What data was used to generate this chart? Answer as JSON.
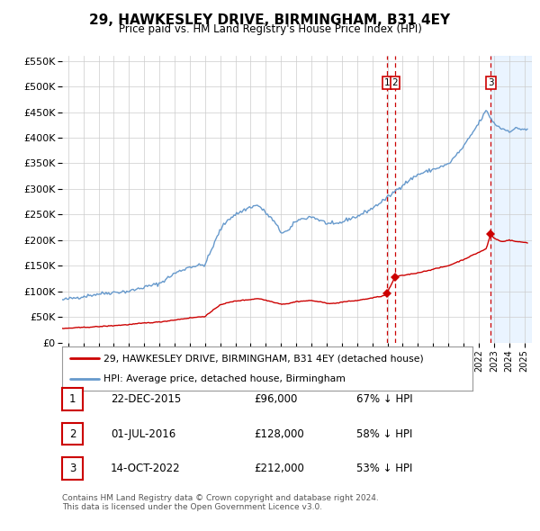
{
  "title": "29, HAWKESLEY DRIVE, BIRMINGHAM, B31 4EY",
  "subtitle": "Price paid vs. HM Land Registry's House Price Index (HPI)",
  "property_label": "29, HAWKESLEY DRIVE, BIRMINGHAM, B31 4EY (detached house)",
  "hpi_label": "HPI: Average price, detached house, Birmingham",
  "transactions": [
    {
      "id": 1,
      "date": "22-DEC-2015",
      "date_num": 2015.97,
      "price": 96000,
      "pct": "67% ↓ HPI"
    },
    {
      "id": 2,
      "date": "01-JUL-2016",
      "date_num": 2016.5,
      "price": 128000,
      "pct": "58% ↓ HPI"
    },
    {
      "id": 3,
      "date": "14-OCT-2022",
      "date_num": 2022.79,
      "price": 212000,
      "pct": "53% ↓ HPI"
    }
  ],
  "footer_line1": "Contains HM Land Registry data © Crown copyright and database right 2024.",
  "footer_line2": "This data is licensed under the Open Government Licence v3.0.",
  "bg_color": "#ffffff",
  "hpi_color": "#6699cc",
  "price_color": "#cc0000",
  "grid_color": "#cccccc",
  "ylim": [
    0,
    560000
  ],
  "xlim_start": 1994.6,
  "xlim_end": 2025.5,
  "dashed_line_color": "#cc0000",
  "shade_color": "#ddeeff",
  "marker_color": "#cc0000",
  "hpi_anchors": [
    [
      1994.6,
      83000
    ],
    [
      1995.0,
      85000
    ],
    [
      1996.0,
      90000
    ],
    [
      1997.0,
      95000
    ],
    [
      1998.0,
      98000
    ],
    [
      1999.0,
      100000
    ],
    [
      2000.0,
      108000
    ],
    [
      2001.0,
      115000
    ],
    [
      2002.0,
      135000
    ],
    [
      2003.0,
      148000
    ],
    [
      2004.0,
      152000
    ],
    [
      2005.0,
      220000
    ],
    [
      2005.5,
      240000
    ],
    [
      2006.0,
      250000
    ],
    [
      2007.0,
      265000
    ],
    [
      2007.5,
      268000
    ],
    [
      2008.5,
      238000
    ],
    [
      2009.0,
      215000
    ],
    [
      2009.5,
      218000
    ],
    [
      2010.0,
      238000
    ],
    [
      2011.0,
      246000
    ],
    [
      2012.0,
      233000
    ],
    [
      2012.5,
      230000
    ],
    [
      2013.0,
      235000
    ],
    [
      2013.5,
      242000
    ],
    [
      2014.0,
      246000
    ],
    [
      2015.0,
      262000
    ],
    [
      2016.0,
      283000
    ],
    [
      2017.0,
      308000
    ],
    [
      2018.0,
      328000
    ],
    [
      2019.0,
      338000
    ],
    [
      2020.0,
      348000
    ],
    [
      2021.0,
      382000
    ],
    [
      2022.0,
      428000
    ],
    [
      2022.5,
      453000
    ],
    [
      2023.0,
      428000
    ],
    [
      2023.5,
      418000
    ],
    [
      2024.0,
      413000
    ],
    [
      2024.5,
      418000
    ],
    [
      2025.2,
      416000
    ]
  ],
  "price_anchors": [
    [
      1994.6,
      27000
    ],
    [
      1995.0,
      28000
    ],
    [
      1996.0,
      29500
    ],
    [
      1997.0,
      31000
    ],
    [
      1998.0,
      33000
    ],
    [
      1999.0,
      35000
    ],
    [
      2000.0,
      38000
    ],
    [
      2001.0,
      40000
    ],
    [
      2002.0,
      44000
    ],
    [
      2003.0,
      48000
    ],
    [
      2004.0,
      51000
    ],
    [
      2004.5,
      62000
    ],
    [
      2005.0,
      74000
    ],
    [
      2006.0,
      81000
    ],
    [
      2007.0,
      84000
    ],
    [
      2007.5,
      86000
    ],
    [
      2008.5,
      79000
    ],
    [
      2009.0,
      75000
    ],
    [
      2009.5,
      76000
    ],
    [
      2010.0,
      80000
    ],
    [
      2011.0,
      82000
    ],
    [
      2012.0,
      77000
    ],
    [
      2012.5,
      76000
    ],
    [
      2013.0,
      79000
    ],
    [
      2014.0,
      82000
    ],
    [
      2015.0,
      87000
    ],
    [
      2015.8,
      91500
    ],
    [
      2015.97,
      96000
    ],
    [
      2016.5,
      128000
    ],
    [
      2017.0,
      131000
    ],
    [
      2018.0,
      136000
    ],
    [
      2019.0,
      143000
    ],
    [
      2020.0,
      150000
    ],
    [
      2021.0,
      162000
    ],
    [
      2022.5,
      183000
    ],
    [
      2022.79,
      212000
    ],
    [
      2023.0,
      204000
    ],
    [
      2023.5,
      197000
    ],
    [
      2024.0,
      200000
    ],
    [
      2024.5,
      197000
    ],
    [
      2025.2,
      195000
    ]
  ]
}
